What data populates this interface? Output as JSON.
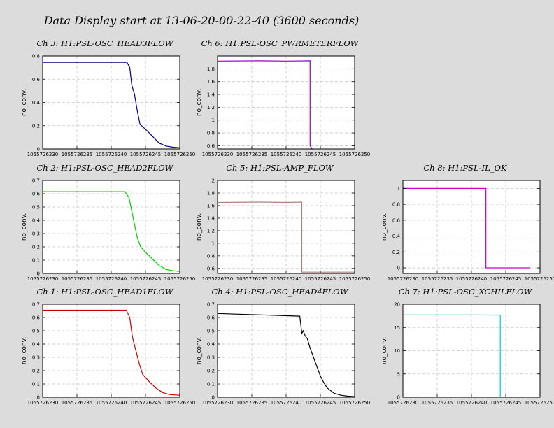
{
  "page": {
    "title": "Data Display start at 13-06-20-00-22-40 (3600 seconds)"
  },
  "chart_data": [
    {
      "type": "line",
      "title": "Ch 3: H1:PSL-OSC_HEAD3FLOW",
      "ylabel": "no_conv.",
      "color": "#00008b",
      "xlim": [
        1055726230,
        1055726250
      ],
      "ylim": [
        0,
        0.8
      ],
      "xticks": [
        1055726230,
        1055726235,
        1055726240,
        1055726245,
        1055726250
      ],
      "xtick_labels": [
        "1055726230",
        "1055726235",
        "1055726240",
        "1055726245",
        "1055726250"
      ],
      "yticks": [
        0,
        0.2,
        0.4,
        0.6,
        0.8
      ],
      "ytick_labels": [
        "0",
        "0.2",
        "0.4",
        "0.6",
        "0.8"
      ],
      "grid": true,
      "x": [
        1055726230,
        1055726234,
        1055726238,
        1055726242.3,
        1055726242.7,
        1055726243,
        1055726243.4,
        1055726243.8,
        1055726244.2,
        1055726245,
        1055726246,
        1055726247,
        1055726248,
        1055726249,
        1055726250
      ],
      "y": [
        0.745,
        0.745,
        0.745,
        0.745,
        0.7,
        0.55,
        0.47,
        0.33,
        0.21,
        0.17,
        0.11,
        0.05,
        0.025,
        0.015,
        0.01
      ]
    },
    {
      "type": "line",
      "title": "Ch 6: H1:PSL-OSC_PWRMETERFLOW",
      "ylabel": "no_conv.",
      "color": "#9400d3",
      "xlim": [
        1055726230,
        1055726250
      ],
      "ylim": [
        0.55,
        2.0
      ],
      "xticks": [
        1055726230,
        1055726235,
        1055726240,
        1055726245,
        1055726250
      ],
      "xtick_labels": [
        "1055726230",
        "1055726235",
        "1055726240",
        "1055726245",
        "1055726250"
      ],
      "yticks": [
        0.6,
        0.8,
        1.0,
        1.2,
        1.4,
        1.6,
        1.8
      ],
      "ytick_labels": [
        "0.6",
        "0.8",
        "1",
        "1.2",
        "1.4",
        "1.6",
        "1.8"
      ],
      "grid": true,
      "x": [
        1055726230,
        1055726236,
        1055726240,
        1055726243.5,
        1055726243.5,
        1055726243.8
      ],
      "y": [
        1.92,
        1.925,
        1.92,
        1.925,
        0.6,
        0.55
      ]
    },
    {
      "type": "line",
      "title": "Ch 2: H1:PSL-OSC_HEAD2FLOW",
      "ylabel": "no_conv.",
      "color": "#00cc00",
      "xlim": [
        1055726230,
        1055726250
      ],
      "ylim": [
        0,
        0.7
      ],
      "xticks": [
        1055726230,
        1055726235,
        1055726240,
        1055726245,
        1055726250
      ],
      "xtick_labels": [
        "1055726230",
        "1055726235",
        "1055726240",
        "1055726245",
        "1055726250"
      ],
      "yticks": [
        0,
        0.1,
        0.2,
        0.3,
        0.4,
        0.5,
        0.6,
        0.7
      ],
      "ytick_labels": [
        "0",
        "0.1",
        "0.2",
        "0.3",
        "0.4",
        "0.5",
        "0.6",
        "0.7"
      ],
      "grid": true,
      "x": [
        1055726230,
        1055726234,
        1055726238,
        1055726242,
        1055726242.6,
        1055726243,
        1055726243.4,
        1055726243.8,
        1055726244.3,
        1055726245,
        1055726246,
        1055726247,
        1055726248,
        1055726249,
        1055726250
      ],
      "y": [
        0.615,
        0.615,
        0.615,
        0.615,
        0.57,
        0.47,
        0.37,
        0.27,
        0.2,
        0.16,
        0.11,
        0.06,
        0.03,
        0.02,
        0.015
      ]
    },
    {
      "type": "line",
      "title": "Ch 5: H1:PSL-AMP_FLOW",
      "ylabel": "no_conv.",
      "color": "#b08080",
      "xlim": [
        1055726230,
        1055726250
      ],
      "ylim": [
        0.52,
        2.0
      ],
      "xticks": [
        1055726230,
        1055726235,
        1055726240,
        1055726245,
        1055726250
      ],
      "xtick_labels": [
        "1055726230",
        "1055726235",
        "1055726240",
        "1055726245",
        "1055726250"
      ],
      "yticks": [
        0.6,
        0.8,
        1.0,
        1.2,
        1.4,
        1.6,
        1.8,
        2.0
      ],
      "ytick_labels": [
        "0.6",
        "0.8",
        "1",
        "1.2",
        "1.4",
        "1.6",
        "1.8",
        "2"
      ],
      "grid": true,
      "x": [
        1055726230,
        1055726236,
        1055726240,
        1055726242.3,
        1055726242.3,
        1055726250
      ],
      "y": [
        1.65,
        1.655,
        1.65,
        1.655,
        0.54,
        0.54
      ]
    },
    {
      "type": "line",
      "title": "Ch 8: H1:PSL-IL_OK",
      "ylabel": "no_conv.",
      "color": "#cc00cc",
      "xlim": [
        1055726230,
        1055726250
      ],
      "ylim": [
        -0.07,
        1.1
      ],
      "xticks": [
        1055726230,
        1055726235,
        1055726240,
        1055726245,
        1055726250
      ],
      "xtick_labels": [
        "1055726230",
        "1055726235",
        "1055726240",
        "1055726245",
        "1055726250"
      ],
      "yticks": [
        0,
        0.2,
        0.4,
        0.6,
        0.8,
        1
      ],
      "ytick_labels": [
        "0",
        "0.2",
        "0.4",
        "0.6",
        "0.8",
        "1"
      ],
      "grid": true,
      "x": [
        1055726230,
        1055726242.1,
        1055726242.1,
        1055726248.5
      ],
      "y": [
        1,
        1,
        0,
        0
      ]
    },
    {
      "type": "line",
      "title": "Ch 1: H1:PSL-OSC_HEAD1FLOW",
      "ylabel": "no_conv.",
      "color": "#cc0000",
      "xlim": [
        1055726230,
        1055726250
      ],
      "ylim": [
        0,
        0.7
      ],
      "xticks": [
        1055726230,
        1055726235,
        1055726240,
        1055726245,
        1055726250
      ],
      "xtick_labels": [
        "1055726230",
        "1055726235",
        "1055726240",
        "1055726245",
        "1055726250"
      ],
      "yticks": [
        0,
        0.1,
        0.2,
        0.3,
        0.4,
        0.5,
        0.6,
        0.7
      ],
      "ytick_labels": [
        "0",
        "0.1",
        "0.2",
        "0.3",
        "0.4",
        "0.5",
        "0.6",
        "0.7"
      ],
      "grid": true,
      "x": [
        1055726230,
        1055726234,
        1055726238,
        1055726242.2,
        1055726242.7,
        1055726243.1,
        1055726243.6,
        1055726244.1,
        1055726244.6,
        1055726245.5,
        1055726246.5,
        1055726247.5,
        1055726248.5,
        1055726250
      ],
      "y": [
        0.655,
        0.655,
        0.655,
        0.655,
        0.6,
        0.45,
        0.35,
        0.25,
        0.17,
        0.12,
        0.07,
        0.035,
        0.02,
        0.015
      ]
    },
    {
      "type": "line",
      "title": "Ch 4: H1:PSL-OSC_HEAD4FLOW",
      "ylabel": "no_conv.",
      "color": "#000000",
      "xlim": [
        1055726230,
        1055726250
      ],
      "ylim": [
        0,
        0.7
      ],
      "xticks": [
        1055726230,
        1055726235,
        1055726240,
        1055726245,
        1055726250
      ],
      "xtick_labels": [
        "1055726230",
        "1055726235",
        "1055726240",
        "1055726245",
        "1055726250"
      ],
      "yticks": [
        0,
        0.1,
        0.2,
        0.3,
        0.4,
        0.5,
        0.6,
        0.7
      ],
      "ytick_labels": [
        "0",
        "0.1",
        "0.2",
        "0.3",
        "0.4",
        "0.5",
        "0.6",
        "0.7"
      ],
      "grid": true,
      "x": [
        1055726230,
        1055726233,
        1055726236,
        1055726239,
        1055726242,
        1055726242.3,
        1055726242.5,
        1055726242.8,
        1055726243.1,
        1055726243.5,
        1055726244,
        1055726244.5,
        1055726245,
        1055726245.5,
        1055726246,
        1055726247,
        1055726248,
        1055726249,
        1055726250
      ],
      "y": [
        0.63,
        0.625,
        0.62,
        0.615,
        0.61,
        0.48,
        0.5,
        0.46,
        0.44,
        0.37,
        0.3,
        0.23,
        0.16,
        0.11,
        0.07,
        0.03,
        0.015,
        0.008,
        0.005
      ]
    },
    {
      "type": "line",
      "title": "Ch 7: H1:PSL-OSC_XCHILFLOW",
      "ylabel": "no_conv.",
      "color": "#00cccc",
      "xlim": [
        1055726230,
        1055726250
      ],
      "ylim": [
        0,
        20
      ],
      "xticks": [
        1055726230,
        1055726235,
        1055726240,
        1055726245,
        1055726250
      ],
      "xtick_labels": [
        "1055726230",
        "1055726235",
        "1055726240",
        "1055726245",
        "1055726250"
      ],
      "yticks": [
        0,
        5,
        10,
        15,
        20
      ],
      "ytick_labels": [
        "0",
        "5",
        "10",
        "15",
        "20"
      ],
      "grid": true,
      "x": [
        1055726230,
        1055726240,
        1055726244.2,
        1055726244.2
      ],
      "y": [
        17.7,
        17.7,
        17.65,
        0
      ]
    }
  ]
}
